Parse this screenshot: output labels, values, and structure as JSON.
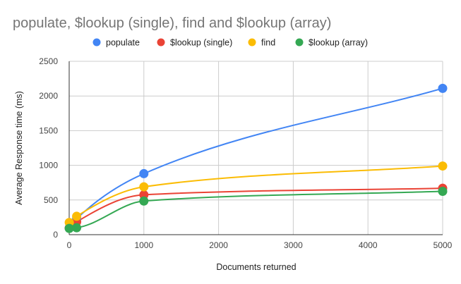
{
  "chart_data": {
    "type": "line",
    "title": "populate, $lookup (single), find and $lookup (array)",
    "xlabel": "Documents returned",
    "ylabel": "Average Response time (ms)",
    "xlim": [
      0,
      5000
    ],
    "ylim": [
      0,
      2500
    ],
    "x_ticks": [
      0,
      1000,
      2000,
      3000,
      4000,
      5000
    ],
    "y_ticks": [
      0,
      500,
      1000,
      1500,
      2000,
      2500
    ],
    "grid": true,
    "legend_position": "top",
    "smooth": true,
    "x": [
      1,
      100,
      1000,
      5000
    ],
    "series": [
      {
        "name": "populate",
        "color": "#4285f4",
        "values": [
          95,
          230,
          880,
          2110
        ]
      },
      {
        "name": "$lookup (single)",
        "color": "#ea4335",
        "values": [
          95,
          185,
          575,
          670
        ]
      },
      {
        "name": "find",
        "color": "#fbbc04",
        "values": [
          175,
          265,
          690,
          990
        ]
      },
      {
        "name": "$lookup (array)",
        "color": "#34a853",
        "values": [
          90,
          100,
          485,
          625
        ]
      }
    ]
  }
}
